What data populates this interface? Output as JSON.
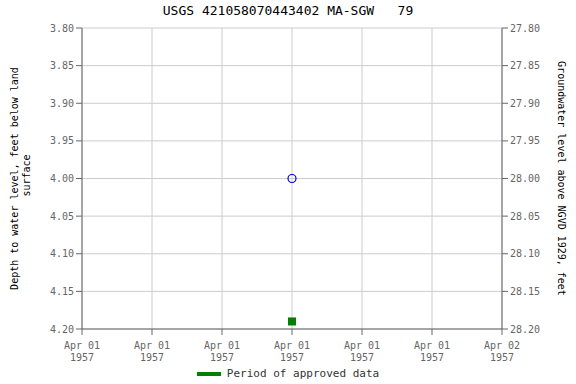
{
  "chart_data": {
    "type": "scatter",
    "title": "USGS 421058070443402 MA-SGW   79",
    "categories": [
      "Apr 01\n1957",
      "Apr 01\n1957",
      "Apr 01\n1957",
      "Apr 01\n1957",
      "Apr 01\n1957",
      "Apr 01\n1957",
      "Apr 02\n1957"
    ],
    "ylabel": "Depth to water level, feet below land\n surface",
    "y2label": "Groundwater level above NGVD 1929, feet",
    "ylim": [
      4.2,
      3.8
    ],
    "yticks": [
      {
        "value": 3.8,
        "label": "3.80"
      },
      {
        "value": 3.85,
        "label": "3.85"
      },
      {
        "value": 3.9,
        "label": "3.90"
      },
      {
        "value": 3.95,
        "label": "3.95"
      },
      {
        "value": 4.0,
        "label": "4.00"
      },
      {
        "value": 4.05,
        "label": "4.05"
      },
      {
        "value": 4.1,
        "label": "4.10"
      },
      {
        "value": 4.15,
        "label": "4.15"
      },
      {
        "value": 4.2,
        "label": "4.20"
      }
    ],
    "y2lim": [
      28.2,
      27.8
    ],
    "y2ticks": [
      {
        "value": 27.8,
        "label": "27.80"
      },
      {
        "value": 27.85,
        "label": "27.85"
      },
      {
        "value": 27.9,
        "label": "27.90"
      },
      {
        "value": 27.95,
        "label": "27.95"
      },
      {
        "value": 28.0,
        "label": "28.00"
      },
      {
        "value": 28.05,
        "label": "28.05"
      },
      {
        "value": 28.1,
        "label": "28.10"
      },
      {
        "value": 28.15,
        "label": "28.15"
      },
      {
        "value": 28.2,
        "label": "28.20"
      }
    ],
    "series": [
      {
        "color": "#0000cc",
        "marker": "open_circle",
        "values": [
          null,
          null,
          null,
          4.0,
          null,
          null,
          null
        ]
      },
      {
        "name": "Period of approved data",
        "color": "#008000",
        "marker": "square",
        "values": [
          null,
          null,
          null,
          4.19,
          null,
          null,
          null
        ]
      }
    ],
    "grid": true,
    "legend": "bottom"
  }
}
